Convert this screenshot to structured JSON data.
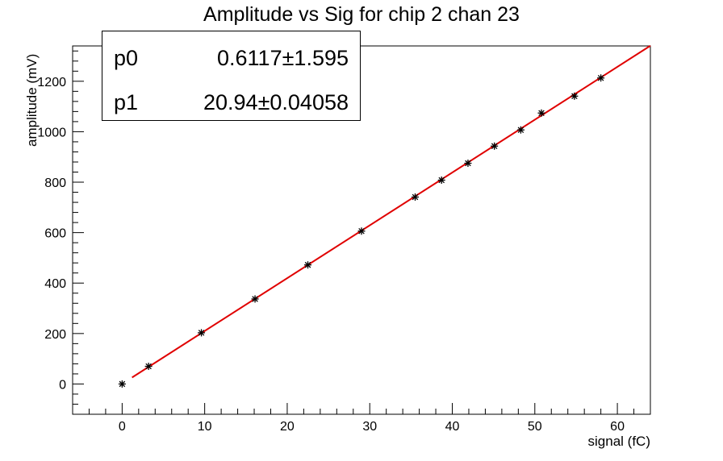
{
  "chart_data": {
    "type": "scatter",
    "title": "Amplitude vs Sig for chip 2 chan 23",
    "xlabel": "signal (fC)",
    "ylabel": "amplitude (mV)",
    "xlim": [
      -6,
      64
    ],
    "ylim": [
      -120,
      1340
    ],
    "xticks": [
      0,
      10,
      20,
      30,
      40,
      50,
      60
    ],
    "yticks": [
      0,
      200,
      400,
      600,
      800,
      1000,
      1200
    ],
    "grid": false,
    "marker": "asterisk",
    "series": [
      {
        "x": [
          0,
          3.2,
          9.6,
          16.1,
          22.5,
          29.0,
          35.5,
          38.7,
          41.9,
          45.1,
          48.3,
          50.8,
          54.8,
          58.0
        ],
        "y": [
          0,
          70,
          203,
          337,
          472,
          606,
          741,
          808,
          875,
          943,
          1007,
          1074,
          1141,
          1213
        ],
        "color": "#000000"
      }
    ],
    "fit": {
      "color": "#e00000",
      "x_range": [
        1.2,
        64
      ],
      "p0": 0.6117,
      "p1": 20.94
    }
  },
  "stats": [
    {
      "name": "p0",
      "value": "0.6117",
      "pm": "±",
      "error": "1.595"
    },
    {
      "name": "p1",
      "value": "20.94",
      "pm": "±",
      "error": "0.04058"
    }
  ]
}
